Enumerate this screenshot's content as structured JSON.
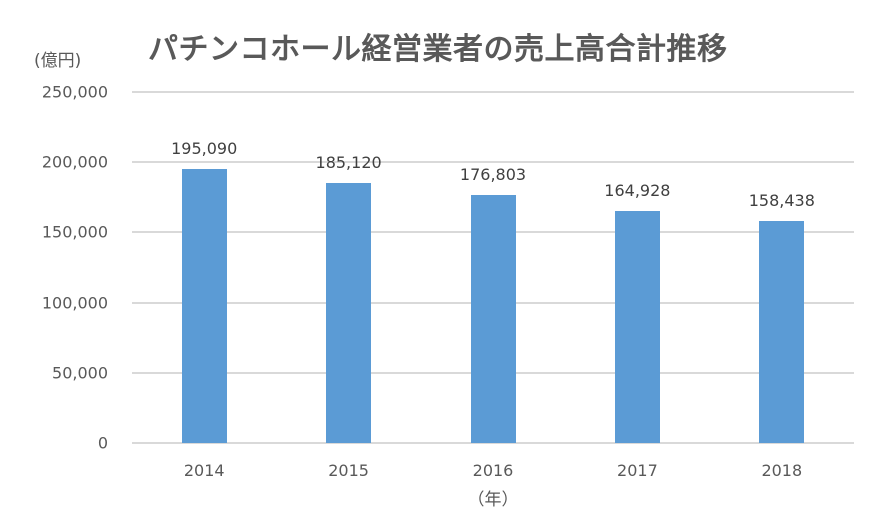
{
  "chart_data": {
    "type": "bar",
    "title": "パチンコホール経営業者の売上高合計推移",
    "ylabel": "(億円)",
    "xlabel": "（年）",
    "categories": [
      "2014",
      "2015",
      "2016",
      "2017",
      "2018"
    ],
    "values": [
      195090,
      185120,
      176803,
      164928,
      158438
    ],
    "value_labels": [
      "195,090",
      "185,120",
      "176,803",
      "164,928",
      "158,438"
    ],
    "ylim": [
      0,
      250000
    ],
    "yticks": [
      0,
      50000,
      100000,
      150000,
      200000,
      250000
    ],
    "ytick_labels": [
      "0",
      "50,000",
      "100,000",
      "150,000",
      "200,000",
      "250,000"
    ],
    "grid": true,
    "legend": null,
    "bar_color": "#5b9bd5"
  }
}
